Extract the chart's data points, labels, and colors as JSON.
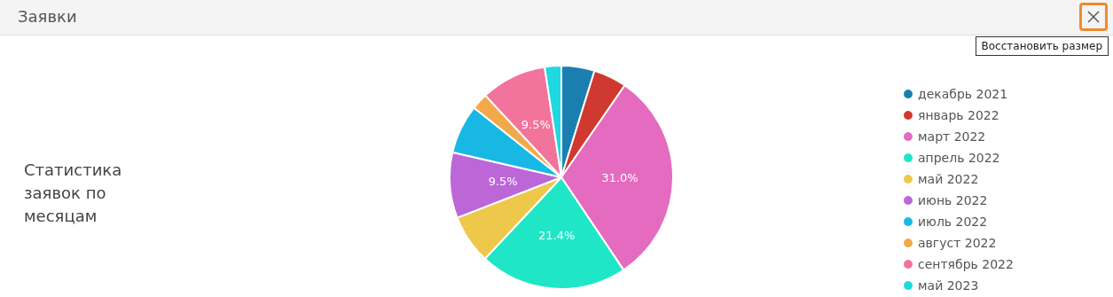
{
  "chart_data": {
    "type": "pie",
    "title": "Заявки",
    "subtitle": "Статистика заявок по месяцам",
    "annotations": [
      "Восстановить размер"
    ],
    "categories": [
      "декабрь 2021",
      "январь 2022",
      "март 2022",
      "апрель 2022",
      "май 2022",
      "июнь 2022",
      "июль 2022",
      "август 2022",
      "сентябрь 2022",
      "май 2023"
    ],
    "values": [
      4.8,
      4.8,
      31.0,
      21.4,
      7.1,
      9.5,
      7.1,
      2.4,
      9.5,
      2.4
    ],
    "value_labels": [
      null,
      null,
      "31.0%",
      "21.4%",
      null,
      "9.5%",
      null,
      null,
      "9.5%",
      null
    ],
    "colors": [
      "#1a7fb0",
      "#d0392f",
      "#e46bbf",
      "#20e6c8",
      "#eec84a",
      "#bd66d8",
      "#19b8e4",
      "#f3a94a",
      "#f2739c",
      "#1fd8e0"
    ],
    "legend": "right"
  }
}
